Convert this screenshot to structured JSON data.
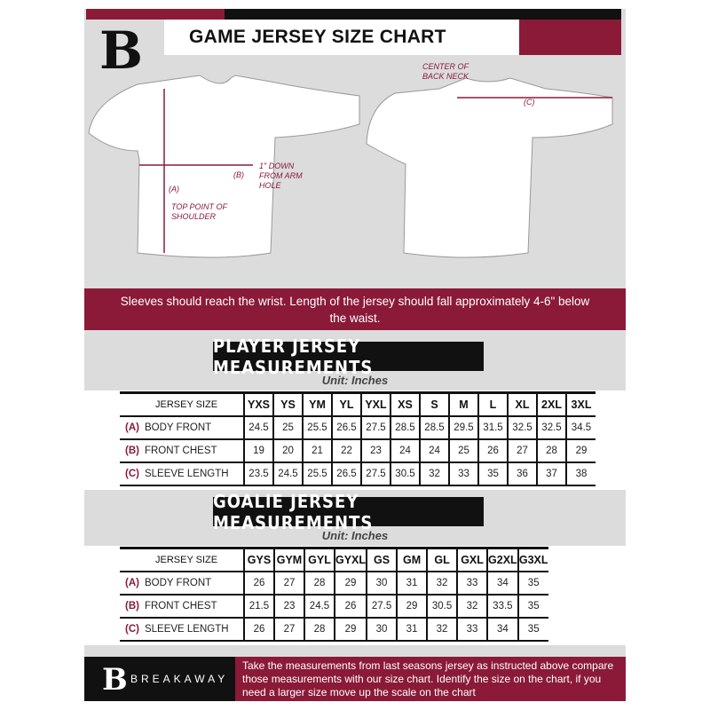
{
  "header": {
    "title": "GAME JERSEY SIZE CHART",
    "logo_letter": "B"
  },
  "diagram": {
    "point_a": "(A)",
    "top_point": "TOP POINT OF SHOULDER",
    "point_b": "(B)",
    "arm_hole": "1\" DOWN FROM ARM HOLE",
    "point_c": "(C)",
    "back_neck": "CENTER OF BACK NECK"
  },
  "banner": "Sleeves should reach the wrist. Length of the jersey should fall approximately 4-6\" below the waist.",
  "player": {
    "title": "PLAYER JERSEY MEASUREMENTS",
    "unit": "Unit: Inches",
    "size_label": "JERSEY SIZE",
    "sizes": [
      "YXS",
      "YS",
      "YM",
      "YL",
      "YXL",
      "XS",
      "S",
      "M",
      "L",
      "XL",
      "2XL",
      "3XL"
    ],
    "rows": [
      {
        "key": "(A)",
        "label": "BODY FRONT",
        "values": [
          "24.5",
          "25",
          "25.5",
          "26.5",
          "27.5",
          "28.5",
          "28.5",
          "29.5",
          "31.5",
          "32.5",
          "32.5",
          "34.5"
        ]
      },
      {
        "key": "(B)",
        "label": "FRONT CHEST",
        "values": [
          "19",
          "20",
          "21",
          "22",
          "23",
          "24",
          "24",
          "25",
          "26",
          "27",
          "28",
          "29"
        ]
      },
      {
        "key": "(C)",
        "label": "SLEEVE LENGTH",
        "values": [
          "23.5",
          "24.5",
          "25.5",
          "26.5",
          "27.5",
          "30.5",
          "32",
          "33",
          "35",
          "36",
          "37",
          "38"
        ]
      }
    ]
  },
  "goalie": {
    "title": "GOALIE JERSEY MEASUREMENTS",
    "unit": "Unit: Inches",
    "size_label": "JERSEY SIZE",
    "sizes": [
      "GYS",
      "GYM",
      "GYL",
      "GYXL",
      "GS",
      "GM",
      "GL",
      "GXL",
      "G2XL",
      "G3XL"
    ],
    "rows": [
      {
        "key": "(A)",
        "label": "BODY FRONT",
        "values": [
          "26",
          "27",
          "28",
          "29",
          "30",
          "31",
          "32",
          "33",
          "34",
          "35"
        ]
      },
      {
        "key": "(B)",
        "label": "FRONT CHEST",
        "values": [
          "21.5",
          "23",
          "24.5",
          "26",
          "27.5",
          "29",
          "30.5",
          "32",
          "33.5",
          "35"
        ]
      },
      {
        "key": "(C)",
        "label": "SLEEVE LENGTH",
        "values": [
          "26",
          "27",
          "28",
          "29",
          "30",
          "31",
          "32",
          "33",
          "34",
          "35"
        ]
      }
    ]
  },
  "footer": {
    "brand": "BREAKAWAY",
    "text": "Take the measurements from last seasons jersey as instructed above compare those measurements  with our size chart. Identify the size on the chart, if you need a larger size move up the scale on the chart"
  },
  "colors": {
    "accent": "#8a1a38",
    "dark": "#111111",
    "background": "#dcdcdd"
  }
}
